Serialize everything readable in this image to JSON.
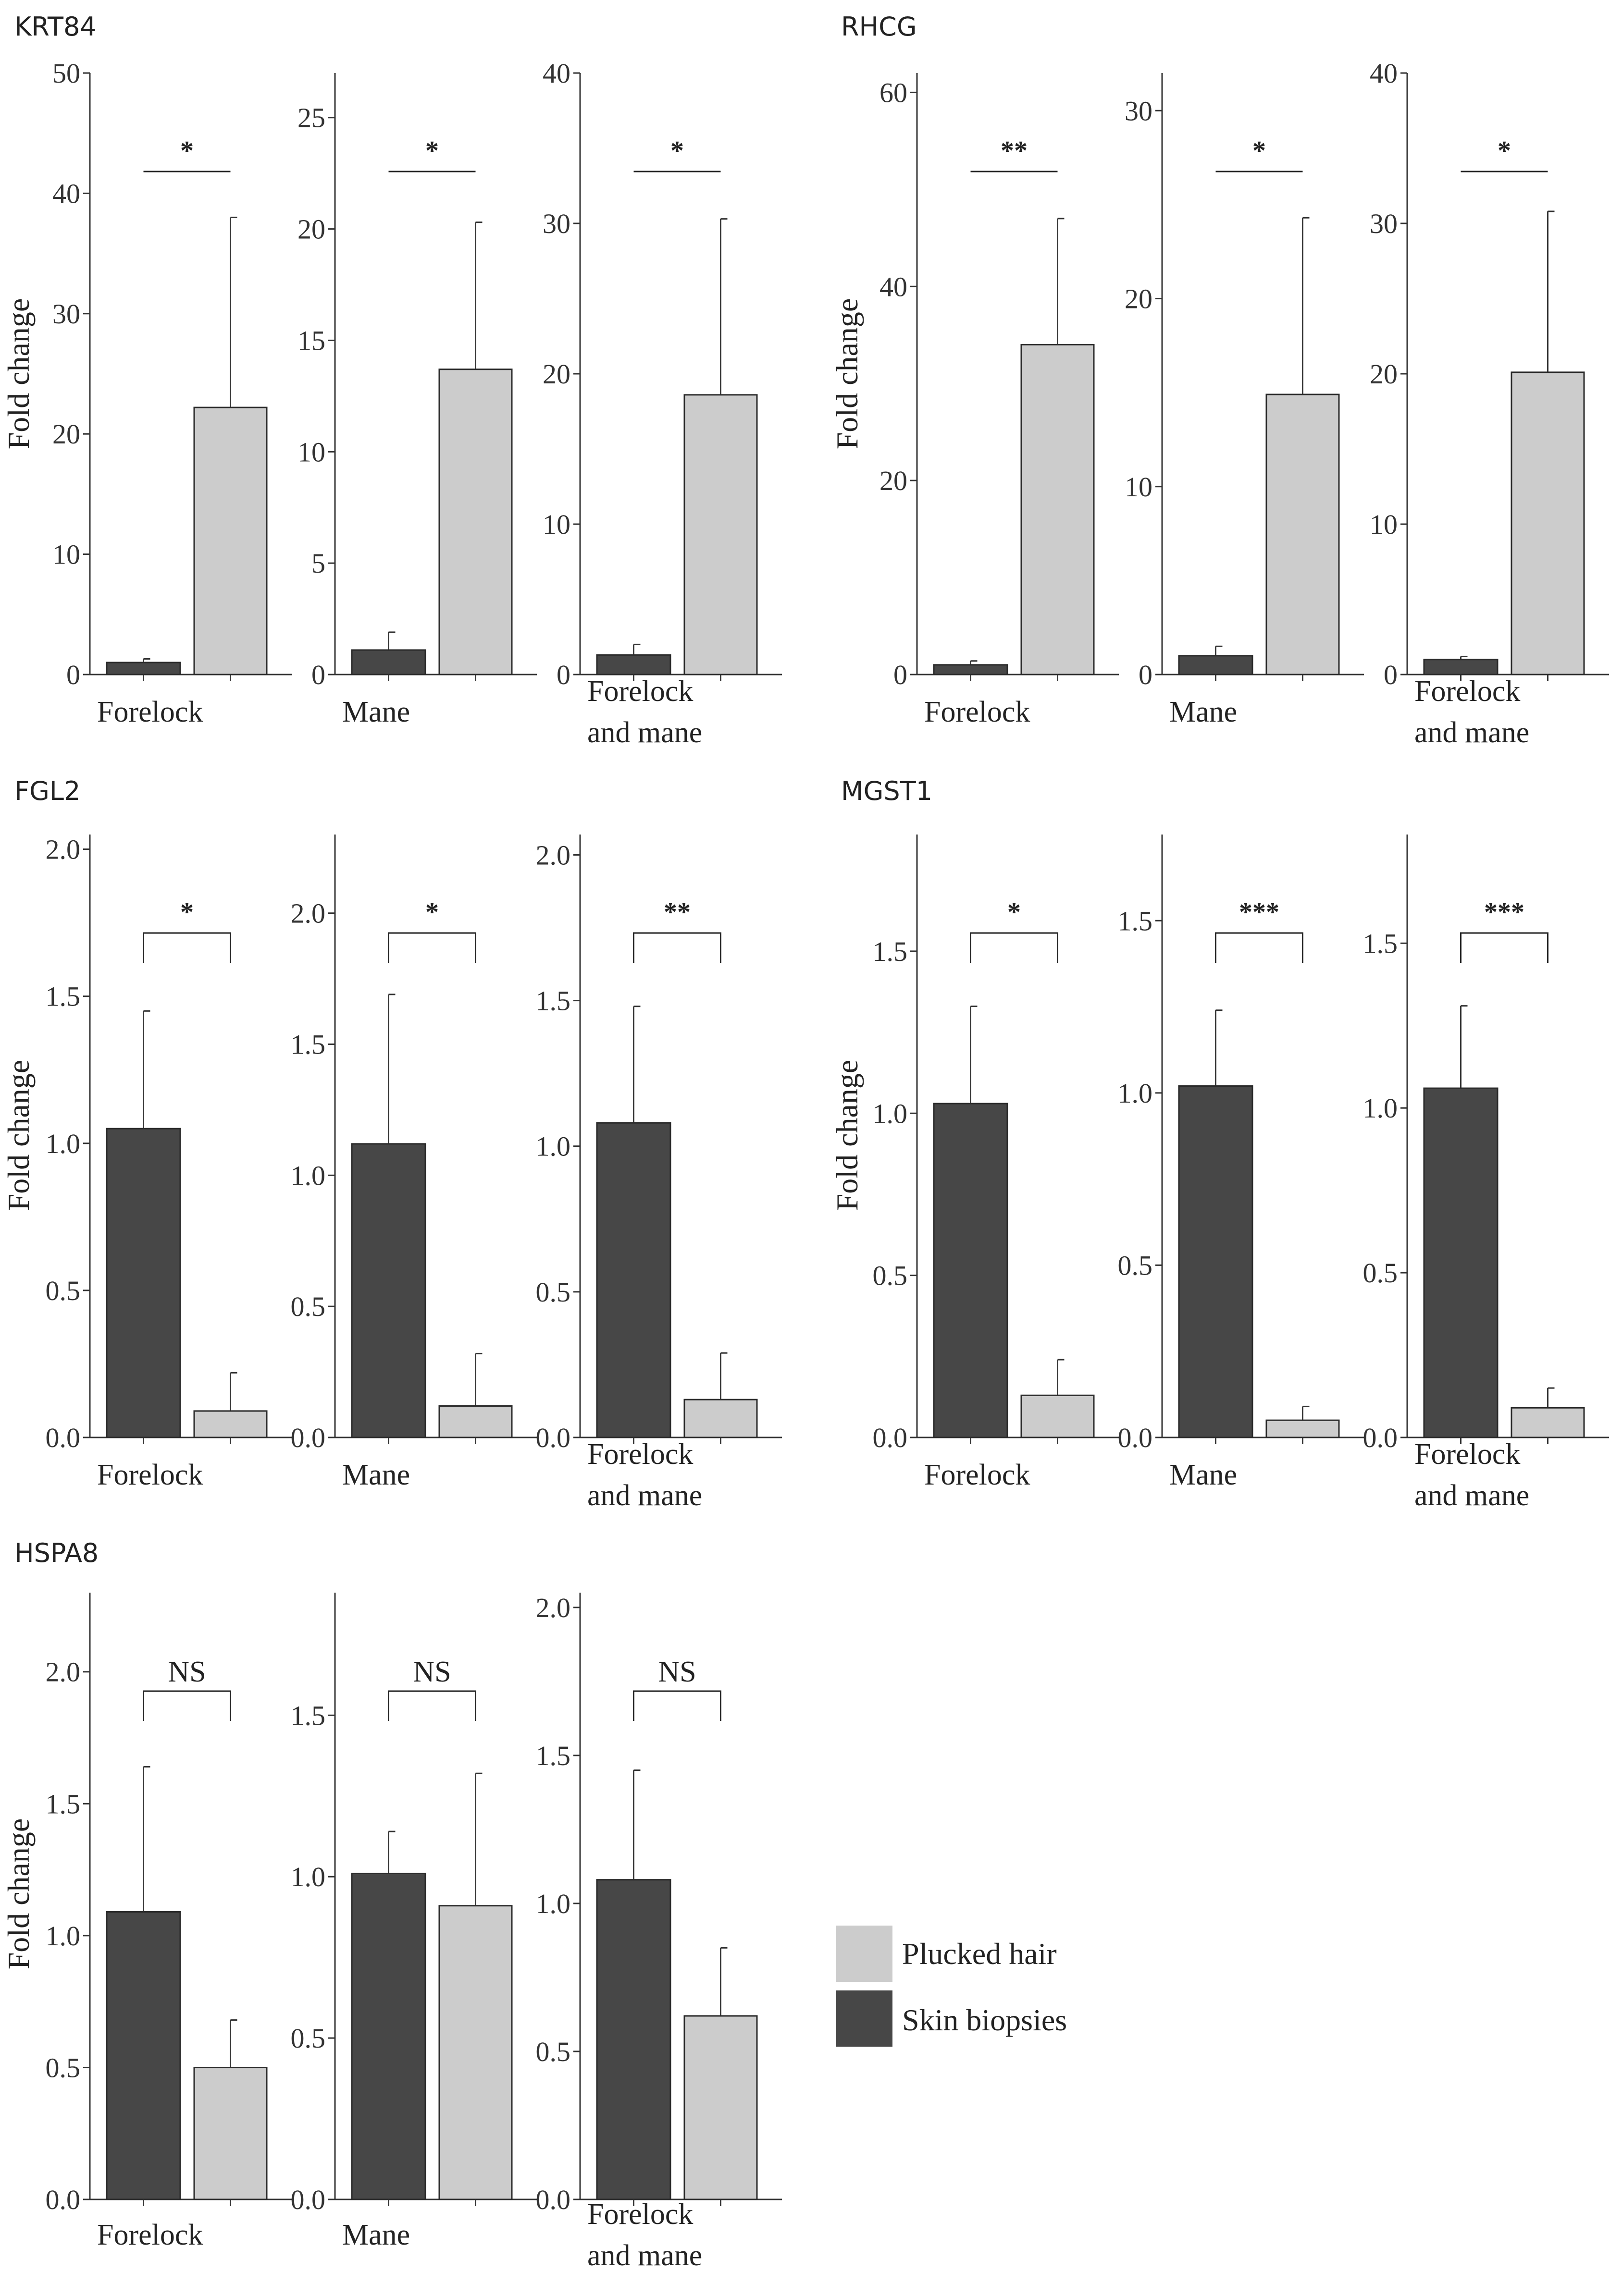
{
  "figure": {
    "legend": [
      {
        "label": "Plucked hair",
        "color": "#cccccc"
      },
      {
        "label": "Skin biopsies",
        "color": "#474747"
      }
    ],
    "colors": {
      "skin": "#474747",
      "plucked": "#cccccc",
      "outline": "#2a2a2a"
    }
  },
  "chart_data": [
    {
      "gene": "KRT84",
      "type": "bar",
      "ylabel": "Fold change",
      "panels": [
        {
          "label": "Forelock",
          "ymax": 50,
          "ticks": [
            0,
            10,
            20,
            30,
            40,
            50
          ],
          "series": [
            {
              "name": "Skin biopsies",
              "value": 1.0,
              "err_high": 1.3
            },
            {
              "name": "Plucked hair",
              "value": 22.2,
              "err_high": 38.0
            }
          ],
          "significance": "*",
          "bracket": "line"
        },
        {
          "label": "Mane",
          "ymax": 27,
          "ticks": [
            0,
            5,
            10,
            15,
            20,
            25
          ],
          "series": [
            {
              "name": "Skin biopsies",
              "value": 1.1,
              "err_high": 1.9
            },
            {
              "name": "Plucked hair",
              "value": 13.7,
              "err_high": 20.3
            }
          ],
          "significance": "*",
          "bracket": "line"
        },
        {
          "label": "Forelock and mane",
          "label_lines": [
            "Forelock",
            "and mane"
          ],
          "ymax": 40,
          "ticks": [
            0,
            10,
            20,
            30,
            40
          ],
          "series": [
            {
              "name": "Skin biopsies",
              "value": 1.3,
              "err_high": 2.0
            },
            {
              "name": "Plucked hair",
              "value": 18.6,
              "err_high": 30.3
            }
          ],
          "significance": "*",
          "bracket": "line"
        }
      ]
    },
    {
      "gene": "RHCG",
      "type": "bar",
      "ylabel": "Fold change",
      "panels": [
        {
          "label": "Forelock",
          "ymax": 62,
          "ticks": [
            0,
            20,
            40,
            60
          ],
          "series": [
            {
              "name": "Skin biopsies",
              "value": 1.0,
              "err_high": 1.4
            },
            {
              "name": "Plucked hair",
              "value": 34.0,
              "err_high": 47.0
            }
          ],
          "significance": "**",
          "bracket": "line"
        },
        {
          "label": "Mane",
          "ymax": 32,
          "ticks": [
            0,
            10,
            20,
            30
          ],
          "series": [
            {
              "name": "Skin biopsies",
              "value": 1.0,
              "err_high": 1.5
            },
            {
              "name": "Plucked hair",
              "value": 14.9,
              "err_high": 24.3
            }
          ],
          "significance": "*",
          "bracket": "line"
        },
        {
          "label": "Forelock and mane",
          "label_lines": [
            "Forelock",
            "and mane"
          ],
          "ymax": 40,
          "ticks": [
            0,
            10,
            20,
            30,
            40
          ],
          "series": [
            {
              "name": "Skin biopsies",
              "value": 1.0,
              "err_high": 1.2
            },
            {
              "name": "Plucked hair",
              "value": 20.1,
              "err_high": 30.8
            }
          ],
          "significance": "*",
          "bracket": "line"
        }
      ]
    },
    {
      "gene": "FGL2",
      "type": "bar",
      "ylabel": "Fold change",
      "panels": [
        {
          "label": "Forelock",
          "ymax": 2.05,
          "ticks": [
            "0.0",
            "0.5",
            "1.0",
            "1.5",
            "2.0"
          ],
          "series": [
            {
              "name": "Skin biopsies",
              "value": 1.05,
              "err_high": 1.45
            },
            {
              "name": "Plucked hair",
              "value": 0.09,
              "err_high": 0.22
            }
          ],
          "significance": "*",
          "bracket": "bracket"
        },
        {
          "label": "Mane",
          "ymax": 2.3,
          "ticks": [
            "0.0",
            "0.5",
            "1.0",
            "1.5",
            "2.0"
          ],
          "series": [
            {
              "name": "Skin biopsies",
              "value": 1.12,
              "err_high": 1.69
            },
            {
              "name": "Plucked hair",
              "value": 0.12,
              "err_high": 0.32
            }
          ],
          "significance": "*",
          "bracket": "bracket"
        },
        {
          "label": "Forelock and mane",
          "label_lines": [
            "Forelock",
            "and mane"
          ],
          "ymax": 2.07,
          "ticks": [
            "0.0",
            "0.5",
            "1.0",
            "1.5",
            "2.0"
          ],
          "series": [
            {
              "name": "Skin biopsies",
              "value": 1.08,
              "err_high": 1.48
            },
            {
              "name": "Plucked hair",
              "value": 0.13,
              "err_high": 0.29
            }
          ],
          "significance": "**",
          "bracket": "bracket"
        }
      ]
    },
    {
      "gene": "MGST1",
      "type": "bar",
      "ylabel": "Fold change",
      "panels": [
        {
          "label": "Forelock",
          "ymax": 1.86,
          "ticks": [
            "0.0",
            "0.5",
            "1.0",
            "1.5"
          ],
          "series": [
            {
              "name": "Skin biopsies",
              "value": 1.03,
              "err_high": 1.33
            },
            {
              "name": "Plucked hair",
              "value": 0.13,
              "err_high": 0.24
            }
          ],
          "significance": "*",
          "bracket": "bracket"
        },
        {
          "label": "Mane",
          "ymax": 1.75,
          "ticks": [
            "0.0",
            "0.5",
            "1.0",
            "1.5"
          ],
          "series": [
            {
              "name": "Skin biopsies",
              "value": 1.02,
              "err_high": 1.24
            },
            {
              "name": "Plucked hair",
              "value": 0.05,
              "err_high": 0.09
            }
          ],
          "significance": "***",
          "bracket": "bracket"
        },
        {
          "label": "Forelock and mane",
          "label_lines": [
            "Forelock",
            "and mane"
          ],
          "ymax": 1.83,
          "ticks": [
            "0.0",
            "0.5",
            "1.0",
            "1.5"
          ],
          "series": [
            {
              "name": "Skin biopsies",
              "value": 1.06,
              "err_high": 1.31
            },
            {
              "name": "Plucked hair",
              "value": 0.09,
              "err_high": 0.15
            }
          ],
          "significance": "***",
          "bracket": "bracket"
        }
      ]
    },
    {
      "gene": "HSPA8",
      "type": "bar",
      "ylabel": "Fold change",
      "panels": [
        {
          "label": "Forelock",
          "ymax": 2.3,
          "ticks": [
            "0.0",
            "0.5",
            "1.0",
            "1.5",
            "2.0"
          ],
          "series": [
            {
              "name": "Skin biopsies",
              "value": 1.09,
              "err_high": 1.64
            },
            {
              "name": "Plucked hair",
              "value": 0.5,
              "err_high": 0.68
            }
          ],
          "significance": "NS",
          "bracket": "bracket"
        },
        {
          "label": "Mane",
          "ymax": 1.88,
          "ticks": [
            "0.0",
            "0.5",
            "1.0",
            "1.5"
          ],
          "series": [
            {
              "name": "Skin biopsies",
              "value": 1.01,
              "err_high": 1.14
            },
            {
              "name": "Plucked hair",
              "value": 0.91,
              "err_high": 1.32
            }
          ],
          "significance": "NS",
          "bracket": "bracket"
        },
        {
          "label": "Forelock and mane",
          "label_lines": [
            "Forelock",
            "and mane"
          ],
          "ymax": 2.05,
          "ticks": [
            "0.0",
            "0.5",
            "1.0",
            "1.5",
            "2.0"
          ],
          "series": [
            {
              "name": "Skin biopsies",
              "value": 1.08,
              "err_high": 1.45
            },
            {
              "name": "Plucked hair",
              "value": 0.62,
              "err_high": 0.85
            }
          ],
          "significance": "NS",
          "bracket": "bracket"
        }
      ]
    }
  ]
}
